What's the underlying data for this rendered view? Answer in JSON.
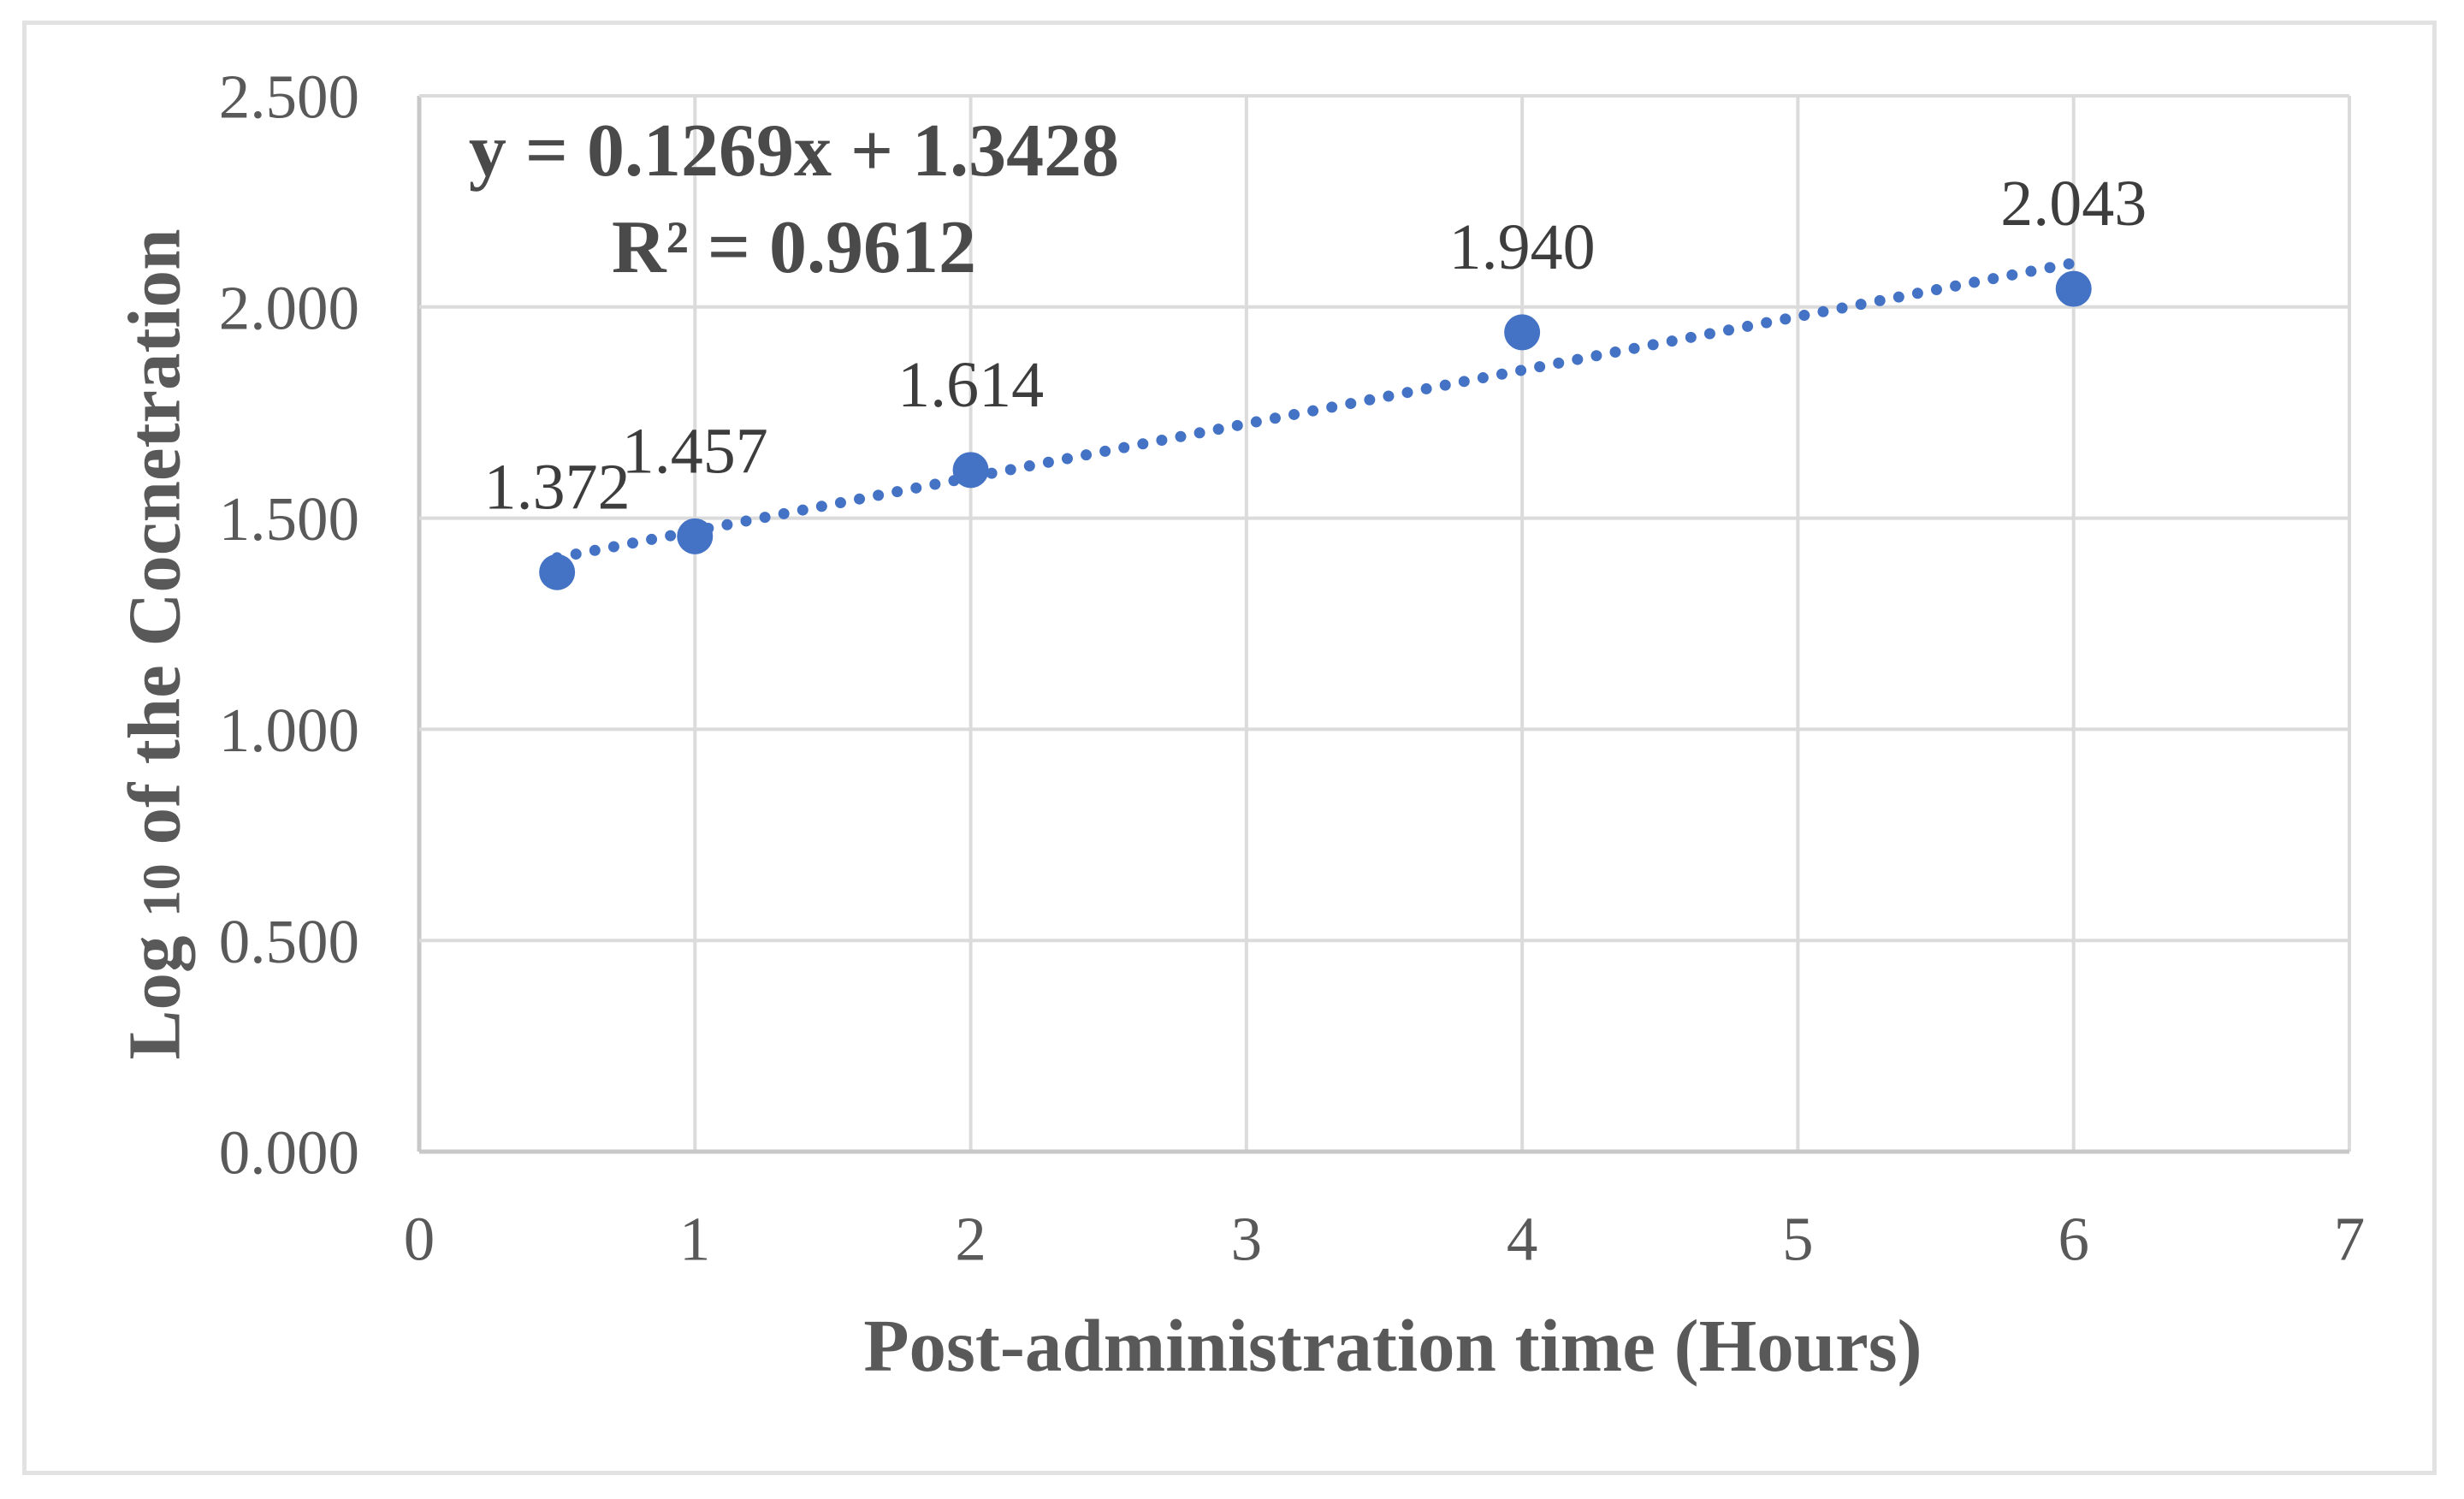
{
  "chart_data": {
    "type": "scatter",
    "title": "",
    "xlabel": "Post-administration time (Hours)",
    "ylabel_parts": {
      "prefix": "Log ",
      "subscript": "10",
      "rest": " of the Cocnetration"
    },
    "x": [
      0.5,
      1,
      2,
      4,
      6
    ],
    "y": [
      1.372,
      1.457,
      1.614,
      1.94,
      2.043
    ],
    "point_labels": [
      "1.372",
      "1.457",
      "1.614",
      "1.940",
      "2.043"
    ],
    "xlim": [
      0,
      7
    ],
    "ylim": [
      0,
      2.5
    ],
    "x_ticks": [
      "0",
      "1",
      "2",
      "3",
      "4",
      "5",
      "6",
      "7"
    ],
    "y_ticks": [
      "0.000",
      "0.500",
      "1.000",
      "1.500",
      "2.000",
      "2.500"
    ],
    "grid": true,
    "legend": false,
    "trendline": {
      "type": "linear",
      "slope": 0.1269,
      "intercept": 1.3428,
      "x_start": 0.5,
      "x_end": 6,
      "equation_label": "y = 0.1269x + 1.3428",
      "r_squared_label": "R² = 0.9612",
      "style": "dotted"
    },
    "colors": {
      "marker": "#4472C4",
      "trendline": "#4472C4",
      "gridline": "#DBDBDB",
      "axis_line": "#C8C8C8",
      "tick_text": "#595959",
      "label_text": "#3D3D3D",
      "chart_border": "#E2E2E2"
    }
  }
}
